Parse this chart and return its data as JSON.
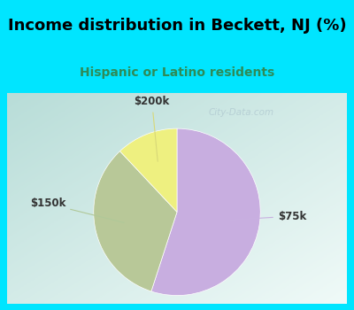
{
  "title": "Income distribution in Beckett, NJ (%)",
  "subtitle": "Hispanic or Latino residents",
  "slices": [
    {
      "label": "$75k",
      "value": 55,
      "color": "#c8aee0"
    },
    {
      "label": "$150k",
      "value": 33,
      "color": "#b8c898"
    },
    {
      "label": "$200k",
      "value": 12,
      "color": "#eef080"
    }
  ],
  "background_top": "#00e5ff",
  "title_color": "#000000",
  "subtitle_color": "#2e8b57",
  "watermark": "City-Data.com",
  "label_font_size": 8.5,
  "title_font_size": 13,
  "subtitle_font_size": 10,
  "startangle": 90,
  "label_positions": {
    "$75k": [
      1.38,
      -0.05
    ],
    "$150k": [
      -1.55,
      0.1
    ],
    "$200k": [
      -0.3,
      1.32
    ]
  },
  "line_colors": {
    "$75k": "#c8b0e0",
    "$150k": "#b0c898",
    "$200k": "#d8d878"
  },
  "gradient_top_left": "#b8ddd8",
  "gradient_bottom_right": "#f0faf8"
}
